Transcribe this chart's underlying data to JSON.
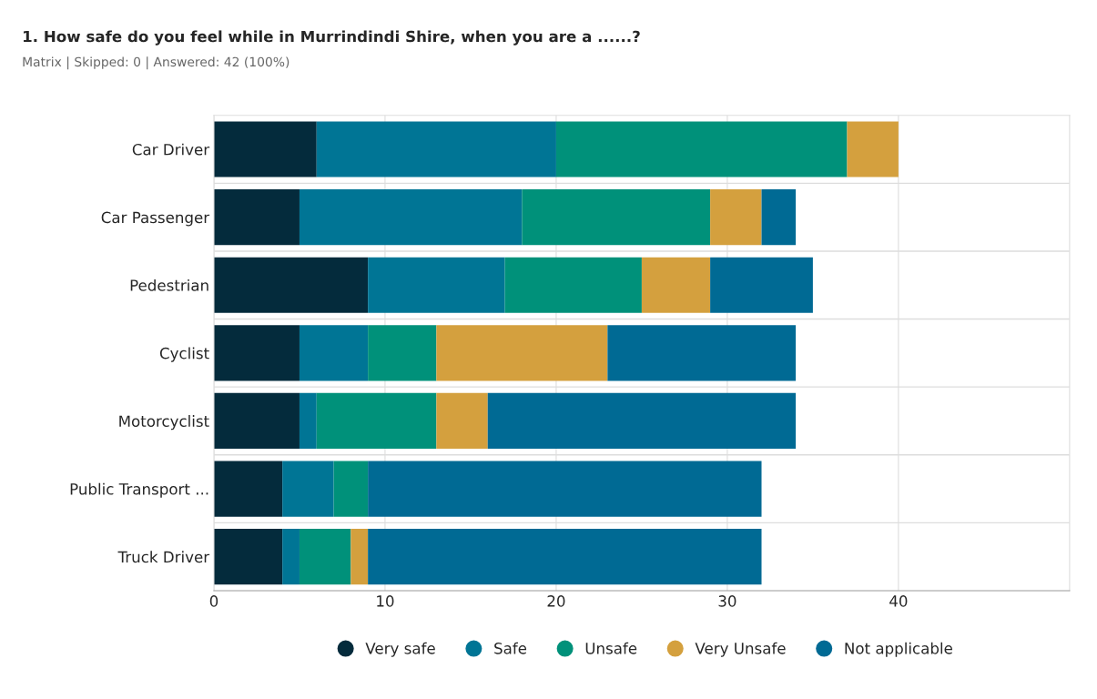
{
  "chart_data": {
    "type": "bar",
    "orientation": "horizontal",
    "stacked": true,
    "title": "1. How safe do you feel while in Murrindindi Shire, when you are a ......?",
    "subtitle": "Matrix | Skipped: 0 | Answered: 42 (100%)",
    "categories": [
      "Car Driver",
      "Car Passenger",
      "Pedestrian",
      "Cyclist",
      "Motorcyclist",
      "Public Transport ...",
      "Truck Driver"
    ],
    "series": [
      {
        "name": "Very safe",
        "color": "#042b3c",
        "values": [
          6,
          5,
          9,
          5,
          5,
          4,
          4
        ]
      },
      {
        "name": "Safe",
        "color": "#007595",
        "values": [
          14,
          13,
          8,
          4,
          1,
          3,
          1
        ]
      },
      {
        "name": "Unsafe",
        "color": "#00917a",
        "values": [
          17,
          11,
          8,
          4,
          7,
          2,
          3
        ]
      },
      {
        "name": "Very Unsafe",
        "color": "#d4a03e",
        "values": [
          3,
          3,
          4,
          10,
          3,
          0,
          1
        ]
      },
      {
        "name": "Not applicable",
        "color": "#006a94",
        "values": [
          0,
          2,
          6,
          11,
          18,
          23,
          23
        ]
      }
    ],
    "xlim": [
      0,
      50
    ],
    "xticks": [
      0,
      10,
      20,
      30,
      40
    ],
    "grid": "x",
    "legend": "bottom"
  }
}
